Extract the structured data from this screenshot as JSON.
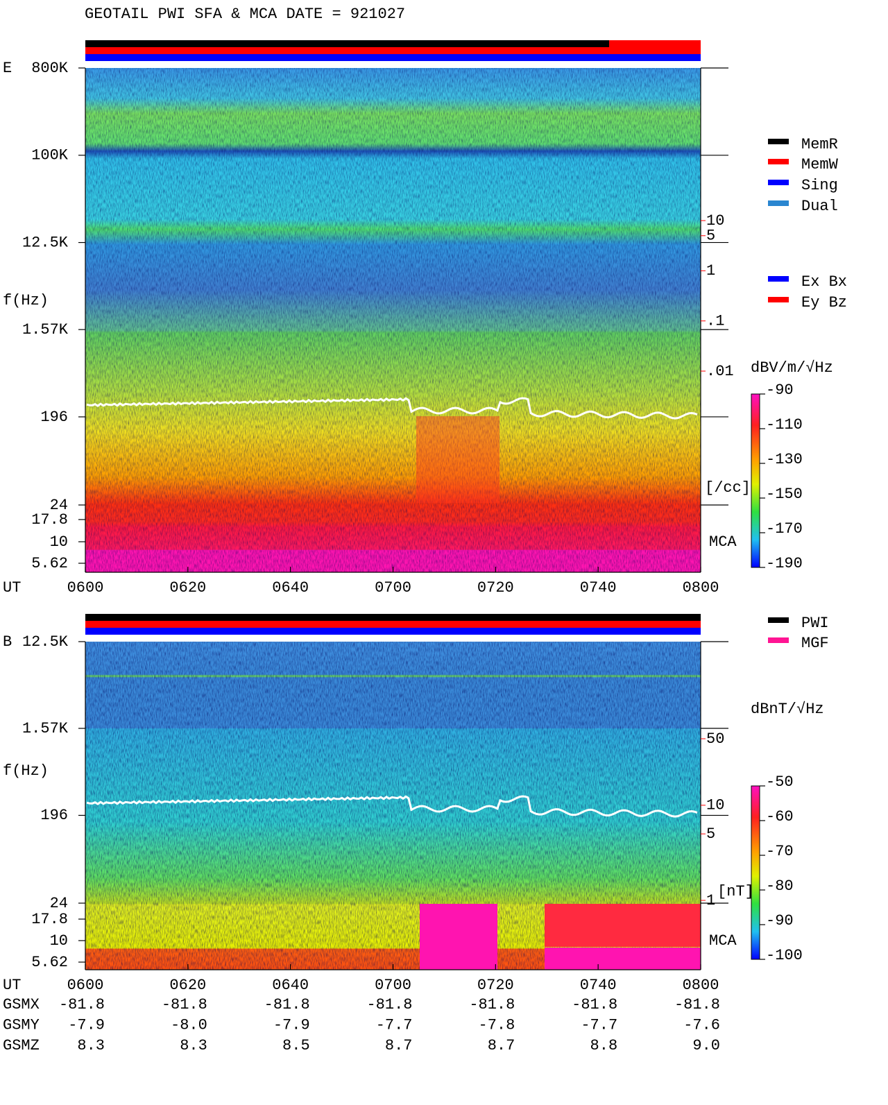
{
  "header": {
    "title": "GEOTAIL  PWI SFA & MCA   DATE = 921027"
  },
  "panels": [
    {
      "label": "E",
      "ylabel": "f(Hz)",
      "freq_lim": [
        24,
        800000
      ],
      "freq_ticks": [
        {
          "value": 800000,
          "label": "800K"
        },
        {
          "value": 100000,
          "label": "100K"
        },
        {
          "value": 12500,
          "label": "12.5K"
        },
        {
          "value": 1570,
          "label": "1.57K"
        },
        196,
        24
      ],
      "mca_ticks": [
        17.8,
        10,
        5.62
      ],
      "mca_label": "MCA",
      "xlabel": "UT",
      "xticks": [
        "0600",
        "0620",
        "0640",
        "0700",
        "0720",
        "0740",
        "0800"
      ],
      "scale": {
        "color": "#ff0000",
        "lim": [
          0.01,
          10
        ],
        "ticks": [
          10,
          5,
          1,
          {
            "value": 0.1,
            "label": ".1"
          },
          {
            "value": 0.01,
            "label": ".01"
          }
        ],
        "unit": "[/cc]"
      },
      "colorbar": {
        "title": "dBV/m/√Hz",
        "lim": [
          -190,
          -90
        ],
        "ticks": [
          -90,
          -110,
          -130,
          -150,
          -170,
          -190
        ]
      },
      "legend": [
        {
          "name": "MemR",
          "color": "#000000"
        },
        {
          "name": "MemW",
          "color": "#ff0000"
        },
        {
          "name": "Sing",
          "color": "#0000ff"
        },
        {
          "name": "Dual",
          "color": "#2a86d0"
        }
      ],
      "legend2": [
        {
          "name": "Ex Bx",
          "color": "#0000ff"
        },
        {
          "name": "Ey Bz",
          "color": "#ff0000"
        }
      ]
    },
    {
      "label": "B",
      "ylabel": "f(Hz)",
      "freq_lim": [
        24,
        12500
      ],
      "freq_ticks": [
        {
          "value": 12500,
          "label": "12.5K"
        },
        {
          "value": 1570,
          "label": "1.57K"
        },
        196,
        24
      ],
      "mca_ticks": [
        17.8,
        10,
        5.62
      ],
      "mca_label": "MCA",
      "xlabel": "UT",
      "xticks": [
        "0600",
        "0620",
        "0640",
        "0700",
        "0720",
        "0740",
        "0800"
      ],
      "scale": {
        "color": "#ff0000",
        "lim": [
          1,
          50
        ],
        "ticks": [
          50,
          10,
          5,
          1
        ],
        "unit": "[nT]"
      },
      "colorbar": {
        "title": "dBnT/√Hz",
        "lim": [
          -100,
          -50
        ],
        "ticks": [
          -50,
          -60,
          -70,
          -80,
          -90,
          -100
        ]
      },
      "legend": [
        {
          "name": "PWI",
          "color": "#000000"
        },
        {
          "name": "MGF",
          "color": "#ff1493"
        }
      ],
      "legend2": []
    }
  ],
  "orbit": {
    "rows": [
      {
        "name": "GSMX",
        "values": [
          "-81.8",
          "-81.8",
          "-81.8",
          "-81.8",
          "-81.8",
          "-81.8",
          "-81.8"
        ]
      },
      {
        "name": "GSMY",
        "values": [
          "-7.9",
          "-8.0",
          "-7.9",
          "-7.7",
          "-7.8",
          "-7.7",
          "-7.6"
        ]
      },
      {
        "name": "GSMZ",
        "values": [
          "8.3",
          "8.3",
          "8.5",
          "8.7",
          "8.7",
          "8.8",
          "9.0"
        ]
      }
    ]
  }
}
